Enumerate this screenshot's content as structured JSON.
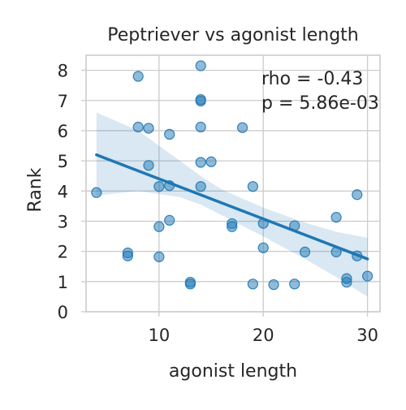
{
  "chart_data": {
    "type": "scatter",
    "title": "Peptriever vs agonist length",
    "xlabel": "agonist length",
    "ylabel": "Rank",
    "xlim": [
      3,
      31.2
    ],
    "ylim": [
      0,
      8.5
    ],
    "xticks": [
      10,
      20,
      30
    ],
    "yticks": [
      0,
      1,
      2,
      3,
      4,
      5,
      6,
      7,
      8
    ],
    "grid": true,
    "points": [
      {
        "x": 4,
        "y": 3.95
      },
      {
        "x": 7,
        "y": 1.95
      },
      {
        "x": 7,
        "y": 1.85
      },
      {
        "x": 8,
        "y": 7.8
      },
      {
        "x": 8,
        "y": 6.12
      },
      {
        "x": 9,
        "y": 6.08
      },
      {
        "x": 9,
        "y": 4.85
      },
      {
        "x": 10,
        "y": 4.15
      },
      {
        "x": 10,
        "y": 2.82
      },
      {
        "x": 10,
        "y": 1.82
      },
      {
        "x": 11,
        "y": 5.88
      },
      {
        "x": 11,
        "y": 4.18
      },
      {
        "x": 11,
        "y": 3.03
      },
      {
        "x": 13,
        "y": 0.98
      },
      {
        "x": 13,
        "y": 0.92
      },
      {
        "x": 14,
        "y": 8.15
      },
      {
        "x": 14,
        "y": 7.03
      },
      {
        "x": 14,
        "y": 6.98
      },
      {
        "x": 14,
        "y": 6.12
      },
      {
        "x": 14,
        "y": 4.95
      },
      {
        "x": 14,
        "y": 4.15
      },
      {
        "x": 15,
        "y": 4.97
      },
      {
        "x": 17,
        "y": 2.92
      },
      {
        "x": 17,
        "y": 2.82
      },
      {
        "x": 18,
        "y": 6.1
      },
      {
        "x": 19,
        "y": 4.15
      },
      {
        "x": 19,
        "y": 0.92
      },
      {
        "x": 20,
        "y": 2.93
      },
      {
        "x": 20,
        "y": 2.12
      },
      {
        "x": 21,
        "y": 0.9
      },
      {
        "x": 23,
        "y": 2.85
      },
      {
        "x": 23,
        "y": 0.92
      },
      {
        "x": 24,
        "y": 1.98
      },
      {
        "x": 27,
        "y": 3.13
      },
      {
        "x": 27,
        "y": 1.98
      },
      {
        "x": 28,
        "y": 1.1
      },
      {
        "x": 28,
        "y": 0.98
      },
      {
        "x": 29,
        "y": 3.88
      },
      {
        "x": 29,
        "y": 1.85
      },
      {
        "x": 30,
        "y": 1.18
      }
    ],
    "regression": {
      "x_start": 4,
      "x_end": 30,
      "y_start": 5.2,
      "y_end": 1.75
    },
    "ci_band": [
      {
        "x": 4,
        "lo": 3.85,
        "hi": 6.6
      },
      {
        "x": 8,
        "lo": 4.0,
        "hi": 6.0
      },
      {
        "x": 12,
        "lo": 3.8,
        "hi": 5.0
      },
      {
        "x": 14,
        "lo": 3.55,
        "hi": 4.5
      },
      {
        "x": 16,
        "lo": 3.2,
        "hi": 4.05
      },
      {
        "x": 20,
        "lo": 2.5,
        "hi": 3.45
      },
      {
        "x": 24,
        "lo": 1.75,
        "hi": 2.95
      },
      {
        "x": 27,
        "lo": 1.15,
        "hi": 2.65
      },
      {
        "x": 30,
        "lo": 0.5,
        "hi": 2.45
      }
    ],
    "annotations": [
      "rho = -0.43",
      "p = 5.86e-03"
    ],
    "colors": {
      "series": "#1f77b4",
      "grid": "#cccccc",
      "text": "#262626"
    }
  }
}
